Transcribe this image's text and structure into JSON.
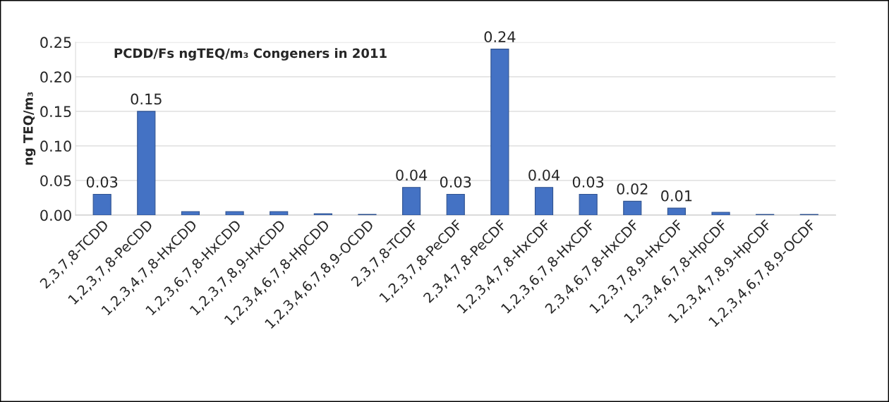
{
  "chart_data": {
    "type": "bar",
    "title": "PCDD/Fs ngTEQ/m₃ Congeners in 2011",
    "ylabel": "ng TEQ/m₃",
    "categories": [
      "2,3,7,8-TCDD",
      "1,2,3,7,8-PeCDD",
      "1,2,3,4,7,8-HxCDD",
      "1,2,3,6,7,8-HxCDD",
      "1,2,3,7,8,9-HxCDD",
      "1,2,3,4,6,7,8-HpCDD",
      "1,2,3,4,6,7,8,9-OCDD",
      "2,3,7,8-TCDF",
      "1,2,3,7,8-PeCDF",
      "2,3,4,7,8-PeCDF",
      "1,2,3,4,7,8-HxCDF",
      "1,2,3,6,7,8-HxCDF",
      "2,3,4,6,7,8-HxCDF",
      "1,2,3,7,8,9-HxCDF",
      "1,2,3,4,6,7,8-HpCDF",
      "1,2,3,4,7,8,9-HpCDF",
      "1,2,3,4,6,7,8,9-OCDF"
    ],
    "values": [
      0.03,
      0.15,
      0.005,
      0.005,
      0.005,
      0.002,
      0.001,
      0.04,
      0.03,
      0.24,
      0.04,
      0.03,
      0.02,
      0.01,
      0.004,
      0.001,
      0.001
    ],
    "value_labels": [
      "0.03",
      "0.15",
      null,
      null,
      null,
      null,
      null,
      "0.04",
      "0.03",
      "0.24",
      "0.04",
      "0.03",
      "0.02",
      "0.01",
      null,
      null,
      null
    ],
    "color": "#4472c4",
    "ylim": [
      0,
      0.25
    ],
    "yticks": [
      {
        "value": 0,
        "label": "0.00"
      },
      {
        "value": 0.05,
        "label": "0.05"
      },
      {
        "value": 0.1,
        "label": "0.10"
      },
      {
        "value": 0.15,
        "label": "0.15"
      },
      {
        "value": 0.2,
        "label": "0.20"
      },
      {
        "value": 0.25,
        "label": "0.25"
      }
    ],
    "grid": "y",
    "legend": false
  }
}
